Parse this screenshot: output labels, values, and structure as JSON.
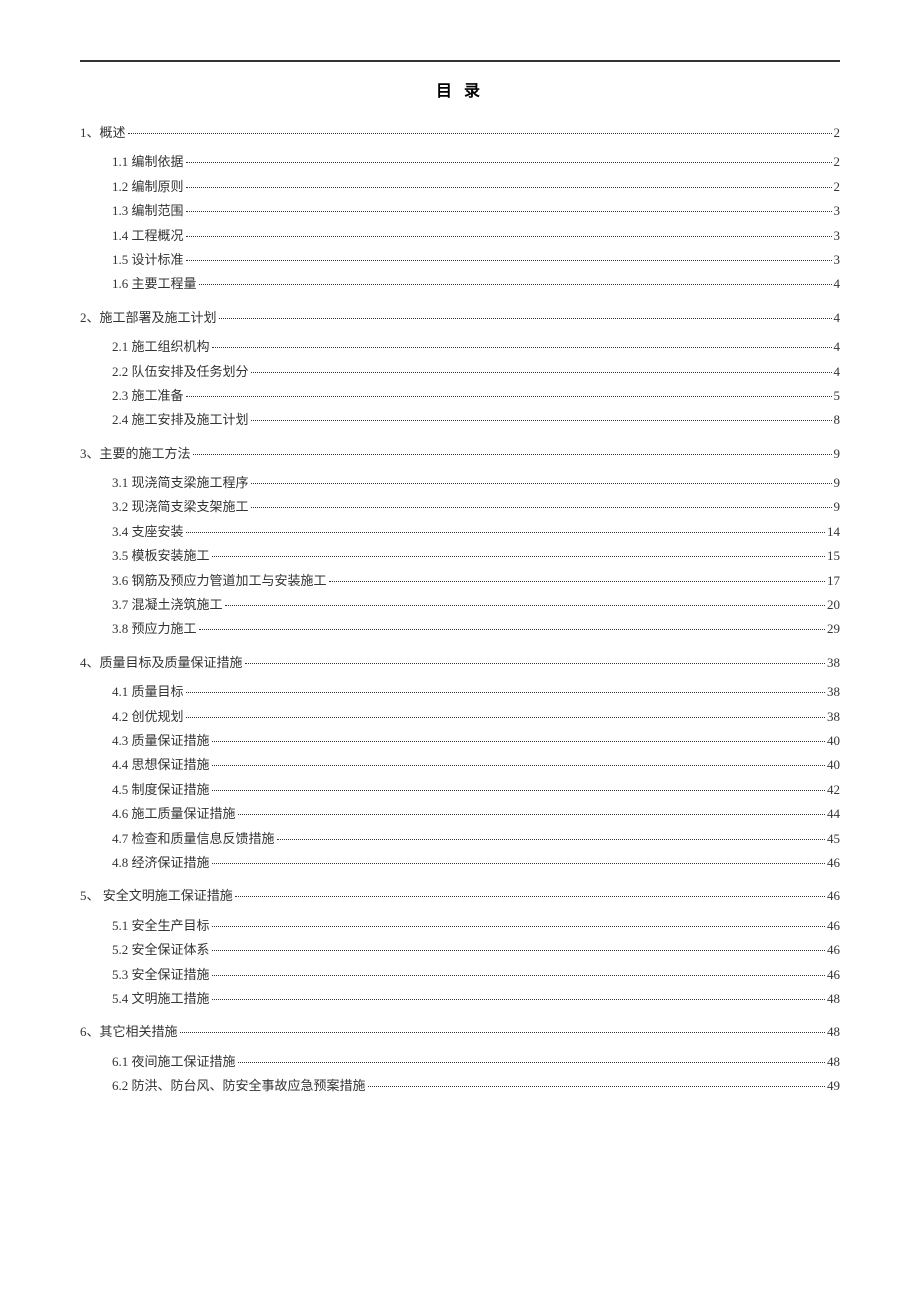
{
  "title": "目 录",
  "entries": [
    {
      "level": 1,
      "label": "1、概述",
      "page": "2"
    },
    {
      "level": 2,
      "label": "1.1 编制依据",
      "page": "2"
    },
    {
      "level": 2,
      "label": "1.2 编制原则",
      "page": "2"
    },
    {
      "level": 2,
      "label": "1.3 编制范围",
      "page": "3"
    },
    {
      "level": 2,
      "label": "1.4 工程概况",
      "page": "3"
    },
    {
      "level": 2,
      "label": "1.5 设计标准",
      "page": "3"
    },
    {
      "level": 2,
      "label": "1.6 主要工程量",
      "page": "4"
    },
    {
      "level": 1,
      "label": "2、施工部署及施工计划",
      "page": "4"
    },
    {
      "level": 2,
      "label": "2.1 施工组织机构",
      "page": "4"
    },
    {
      "level": 2,
      "label": "2.2 队伍安排及任务划分",
      "page": "4"
    },
    {
      "level": 2,
      "label": "2.3 施工准备",
      "page": "5"
    },
    {
      "level": 2,
      "label": "2.4 施工安排及施工计划",
      "page": "8"
    },
    {
      "level": 1,
      "label": "3、主要的施工方法",
      "page": "9"
    },
    {
      "level": 2,
      "label": "3.1 现浇简支梁施工程序",
      "page": "9"
    },
    {
      "level": 2,
      "label": "3.2 现浇简支梁支架施工",
      "page": "9"
    },
    {
      "level": 2,
      "label": "3.4 支座安装",
      "page": "14"
    },
    {
      "level": 2,
      "label": "3.5 模板安装施工",
      "page": "15"
    },
    {
      "level": 2,
      "label": "3.6 钢筋及预应力管道加工与安装施工",
      "page": "17"
    },
    {
      "level": 2,
      "label": "3.7 混凝土浇筑施工",
      "page": "20"
    },
    {
      "level": 2,
      "label": "3.8 预应力施工",
      "page": "29"
    },
    {
      "level": 1,
      "label": "4、质量目标及质量保证措施",
      "page": "38"
    },
    {
      "level": 2,
      "label": "4.1 质量目标",
      "page": "38"
    },
    {
      "level": 2,
      "label": "4.2 创优规划",
      "page": "38"
    },
    {
      "level": 2,
      "label": "4.3 质量保证措施",
      "page": "40"
    },
    {
      "level": 2,
      "label": "4.4 思想保证措施",
      "page": "40"
    },
    {
      "level": 2,
      "label": "4.5 制度保证措施",
      "page": "42"
    },
    {
      "level": 2,
      "label": "4.6 施工质量保证措施",
      "page": "44"
    },
    {
      "level": 2,
      "label": "4.7 检查和质量信息反馈措施",
      "page": "45"
    },
    {
      "level": 2,
      "label": "4.8 经济保证措施",
      "page": "46"
    },
    {
      "level": 1,
      "label": "5、 安全文明施工保证措施",
      "page": "46"
    },
    {
      "level": 2,
      "label": "5.1 安全生产目标",
      "page": "46"
    },
    {
      "level": 2,
      "label": "5.2 安全保证体系",
      "page": "46"
    },
    {
      "level": 2,
      "label": "5.3 安全保证措施",
      "page": "46"
    },
    {
      "level": 2,
      "label": "5.4 文明施工措施",
      "page": "48"
    },
    {
      "level": 1,
      "label": "6、其它相关措施",
      "page": "48"
    },
    {
      "level": 2,
      "label": "6.1 夜间施工保证措施",
      "page": "48"
    },
    {
      "level": 2,
      "label": "6.2 防洪、防台风、防安全事故应急预案措施",
      "page": "49"
    }
  ]
}
